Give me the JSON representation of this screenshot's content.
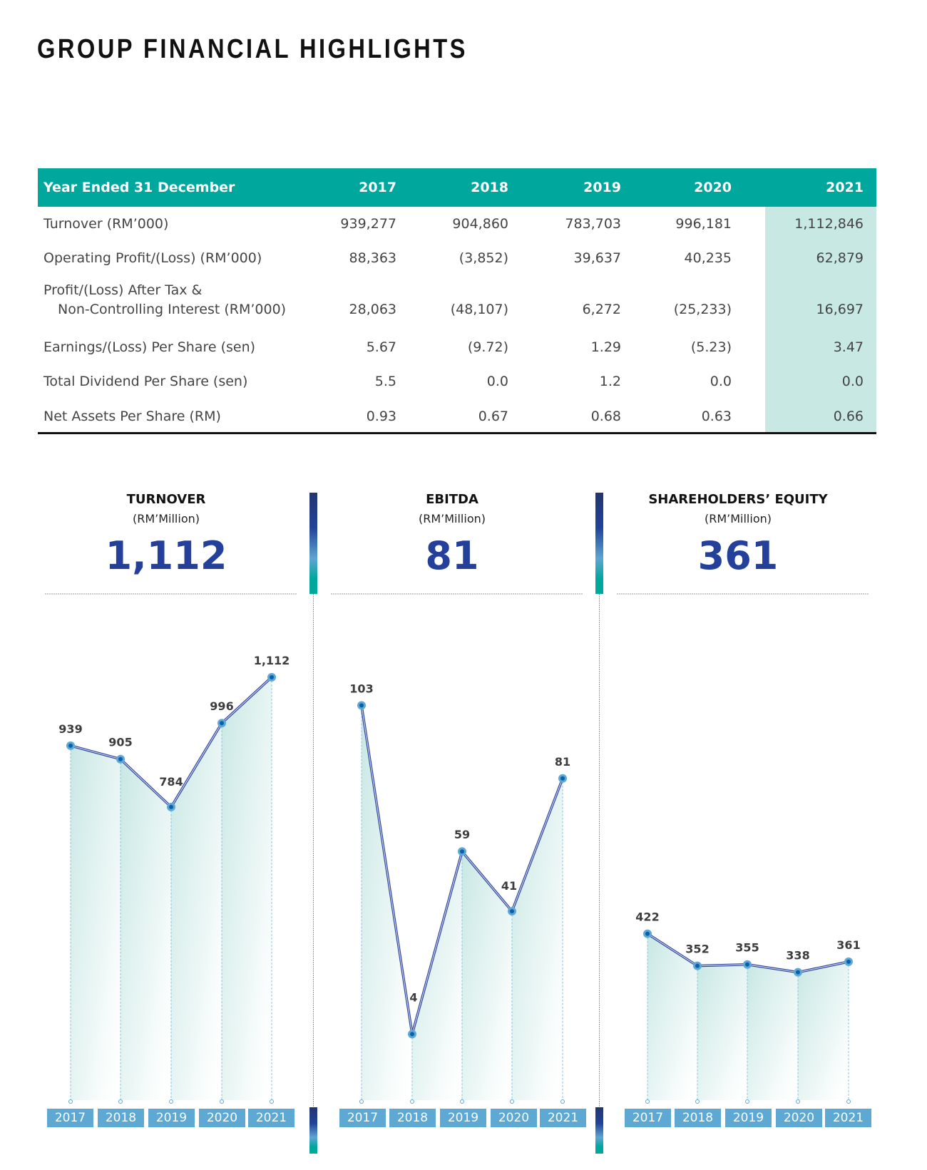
{
  "page_title": "GROUP FINANCIAL HIGHLIGHTS",
  "table": {
    "header": [
      "Year Ended 31 December",
      "2017",
      "2018",
      "2019",
      "2020",
      "2021"
    ],
    "rows": [
      {
        "label": [
          "Turnover (RM’000)"
        ],
        "values": [
          "939,277",
          "904,860",
          "783,703",
          "996,181",
          "1,112,846"
        ]
      },
      {
        "label": [
          "Operating Profit/(Loss) (RM’000)"
        ],
        "values": [
          "88,363",
          "(3,852)",
          "39,637",
          "40,235",
          "62,879"
        ]
      },
      {
        "label": [
          "Profit/(Loss) After Tax &",
          "Non-Controlling Interest (RM’000)"
        ],
        "values": [
          "28,063",
          "(48,107)",
          "6,272",
          "(25,233)",
          "16,697"
        ]
      },
      {
        "label": [
          "Earnings/(Loss) Per Share (sen)"
        ],
        "values": [
          "5.67",
          "(9.72)",
          "1.29",
          "(5.23)",
          "3.47"
        ]
      },
      {
        "label": [
          "Total Dividend Per Share (sen)"
        ],
        "values": [
          "5.5",
          "0.0",
          "1.2",
          "0.0",
          "0.0"
        ]
      },
      {
        "label": [
          "Net Assets Per Share (RM)"
        ],
        "values": [
          "0.93",
          "0.67",
          "0.68",
          "0.63",
          "0.66"
        ]
      }
    ]
  },
  "colors": {
    "header_bg": "#00a79d",
    "highlight_col": "#c7e8e3",
    "value_blue": "#24409a",
    "line": "#3a4fa0",
    "point": "#5ea8d4",
    "year_box": "#5ea8d4"
  },
  "chart_data": [
    {
      "type": "line",
      "title": "TURNOVER",
      "unit": "(RM’Million)",
      "headline": "1,112",
      "categories": [
        "2017",
        "2018",
        "2019",
        "2020",
        "2021"
      ],
      "values": [
        939,
        905,
        784,
        996,
        1112
      ],
      "labels": [
        "939",
        "905",
        "784",
        "996",
        "1,112"
      ],
      "grid": false
    },
    {
      "type": "line",
      "title": "EBITDA",
      "unit": "(RM’Million)",
      "headline": "81",
      "categories": [
        "2017",
        "2018",
        "2019",
        "2020",
        "2021"
      ],
      "values": [
        103,
        4,
        59,
        41,
        81
      ],
      "labels": [
        "103",
        "4",
        "59",
        "41",
        "81"
      ],
      "grid": false
    },
    {
      "type": "line",
      "title": "SHAREHOLDERS’ EQUITY",
      "unit": "(RM’Million)",
      "headline": "361",
      "categories": [
        "2017",
        "2018",
        "2019",
        "2020",
        "2021"
      ],
      "values": [
        422,
        352,
        355,
        338,
        361
      ],
      "labels": [
        "422",
        "352",
        "355",
        "338",
        "361"
      ],
      "grid": false
    }
  ]
}
